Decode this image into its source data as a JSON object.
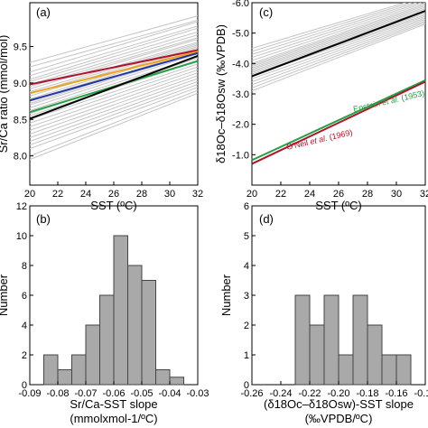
{
  "colors": {
    "gray": "#c4c4c4",
    "black": "#000000",
    "orange": "#f0a31a",
    "red": "#b0132a",
    "green": "#25a043",
    "blue": "#2336a0",
    "bar_fill": "#a9a9a9"
  },
  "chart_data": [
    {
      "id": "a",
      "type": "line",
      "panel_label": "(a)",
      "xlabel": "SST (ºC)",
      "ylabel": "Sr/Ca ratio (mmol/mol)",
      "xlim": [
        20,
        32
      ],
      "ylim": [
        7.6,
        10.1
      ],
      "xticks": [
        20,
        22,
        24,
        26,
        28,
        30,
        32
      ],
      "yticks": [
        8.0,
        8.5,
        9.0,
        9.5
      ],
      "ytick_labels": [
        "8.0",
        "8.5",
        "9.0",
        "9.5"
      ],
      "gray_lines": [
        [
          9.28,
          9.92
        ],
        [
          9.22,
          9.86
        ],
        [
          9.15,
          9.84
        ],
        [
          9.1,
          9.78
        ],
        [
          9.05,
          9.75
        ],
        [
          9.02,
          9.7
        ],
        [
          8.98,
          9.66
        ],
        [
          8.95,
          9.62
        ],
        [
          8.92,
          9.6
        ],
        [
          8.88,
          9.56
        ],
        [
          8.85,
          9.54
        ],
        [
          8.82,
          9.52
        ],
        [
          8.78,
          9.5
        ],
        [
          8.75,
          9.48
        ],
        [
          8.72,
          9.45
        ],
        [
          8.7,
          9.42
        ],
        [
          8.66,
          9.4
        ],
        [
          8.62,
          9.36
        ],
        [
          8.58,
          9.34
        ],
        [
          8.55,
          9.3
        ],
        [
          8.5,
          9.26
        ],
        [
          8.45,
          9.22
        ],
        [
          8.4,
          9.18
        ],
        [
          8.35,
          9.14
        ],
        [
          8.3,
          9.1
        ],
        [
          8.25,
          9.06
        ],
        [
          8.2,
          9.02
        ],
        [
          8.15,
          8.98
        ],
        [
          8.1,
          8.94
        ],
        [
          8.0,
          8.9
        ],
        [
          7.95,
          8.86
        ]
      ],
      "series": [
        {
          "color_key": "red",
          "x": [
            20,
            32
          ],
          "y": [
            8.98,
            9.45
          ]
        },
        {
          "color_key": "orange",
          "x": [
            20,
            32
          ],
          "y": [
            8.86,
            9.43
          ]
        },
        {
          "color_key": "blue",
          "x": [
            20,
            32
          ],
          "y": [
            8.76,
            9.41
          ]
        },
        {
          "color_key": "green",
          "x": [
            20,
            32
          ],
          "y": [
            8.6,
            9.3
          ]
        },
        {
          "color_key": "black",
          "x": [
            20,
            32
          ],
          "y": [
            8.51,
            9.37
          ]
        }
      ]
    },
    {
      "id": "c",
      "type": "line",
      "panel_label": "(c)",
      "xlabel": "SST (ºC)",
      "ylabel": "δ18Oc–δ18Osw (‰VPDB)",
      "xlim": [
        20,
        32
      ],
      "ylim": [
        0.0,
        -6.0
      ],
      "xticks": [
        20,
        22,
        24,
        26,
        28,
        30,
        32
      ],
      "yticks": [
        -6.0,
        -5.0,
        -4.0,
        -3.0,
        -2.0,
        -1.0
      ],
      "ytick_labels": [
        "-6.0",
        "-5.0",
        "-4.0",
        "-3.0",
        "-2.0",
        "-1.0"
      ],
      "gray_lines": [
        [
          -4.5,
          -6.2
        ],
        [
          -4.4,
          -6.15
        ],
        [
          -4.3,
          -6.1
        ],
        [
          -4.2,
          -6.05
        ],
        [
          -4.1,
          -6.0
        ],
        [
          -4.0,
          -5.95
        ],
        [
          -3.95,
          -5.9
        ],
        [
          -3.9,
          -5.85
        ],
        [
          -3.85,
          -5.8
        ],
        [
          -3.8,
          -5.75
        ],
        [
          -3.75,
          -5.7
        ],
        [
          -3.7,
          -5.65
        ],
        [
          -3.65,
          -5.6
        ],
        [
          -3.6,
          -5.55
        ],
        [
          -3.5,
          -5.5
        ],
        [
          -3.4,
          -5.45
        ],
        [
          -3.3,
          -5.4
        ],
        [
          -3.2,
          -5.35
        ],
        [
          -3.1,
          -5.3
        ]
      ],
      "series": [
        {
          "color_key": "black",
          "x": [
            20,
            32
          ],
          "y": [
            -3.58,
            -5.73
          ]
        },
        {
          "color_key": "green",
          "x": [
            20,
            32
          ],
          "y": [
            -0.82,
            -3.45
          ]
        },
        {
          "color_key": "red",
          "x": [
            20,
            32
          ],
          "y": [
            -0.7,
            -3.4
          ]
        }
      ],
      "annotations": [
        {
          "color_key": "green",
          "lead": "Epstein ",
          "italic": "et al.",
          "tail": " (1953)"
        },
        {
          "color_key": "red",
          "lead": "O'Neil ",
          "italic": "et al.",
          "tail": " (1969)"
        }
      ]
    },
    {
      "id": "b",
      "type": "bar",
      "panel_label": "(b)",
      "xlabel": "Sr/Ca-SST slope",
      "xlabel2": "(mmolxmol-1/ºC)",
      "ylabel": "Number",
      "xlim": [
        -0.09,
        -0.03
      ],
      "ylim": [
        0,
        12
      ],
      "xticks": [
        -0.09,
        -0.08,
        -0.07,
        -0.06,
        -0.05,
        -0.04,
        -0.03
      ],
      "xtick_labels": [
        "-0.09",
        "-0.08",
        "-0.07",
        "-0.06",
        "-0.05",
        "-0.04",
        "-0.03"
      ],
      "yticks": [
        0,
        2,
        4,
        6,
        8,
        10,
        12
      ],
      "ytick_labels": [
        "0",
        "2",
        "4",
        "6",
        "8",
        "10",
        "12"
      ],
      "bin_width": 0.005,
      "bin_starts": [
        -0.085,
        -0.08,
        -0.075,
        -0.07,
        -0.065,
        -0.06,
        -0.055,
        -0.05,
        -0.045,
        -0.04
      ],
      "values": [
        2,
        1,
        2,
        4,
        6,
        10,
        8,
        7,
        1,
        0.5
      ]
    },
    {
      "id": "d",
      "type": "bar",
      "panel_label": "(d)",
      "xlabel": "(δ18Oc–δ18Osw)-SST slope",
      "xlabel2": "(‰VPDB/ºC)",
      "ylabel": "Number",
      "xlim": [
        -0.26,
        -0.14
      ],
      "ylim": [
        0,
        6
      ],
      "xticks": [
        -0.26,
        -0.24,
        -0.22,
        -0.2,
        -0.18,
        -0.16,
        -0.14
      ],
      "xtick_labels": [
        "-0.26",
        "-0.24",
        "-0.22",
        "-0.20",
        "-0.18",
        "-0.16",
        "-0.14"
      ],
      "yticks": [
        0,
        1,
        2,
        3,
        4,
        5,
        6
      ],
      "ytick_labels": [
        "0",
        "1",
        "2",
        "3",
        "4",
        "5",
        "6"
      ],
      "bin_width": 0.01,
      "bin_starts": [
        -0.23,
        -0.22,
        -0.21,
        -0.2,
        -0.19,
        -0.18,
        -0.17,
        -0.16
      ],
      "values": [
        3,
        2,
        3,
        1,
        3,
        2,
        1,
        1
      ]
    }
  ]
}
